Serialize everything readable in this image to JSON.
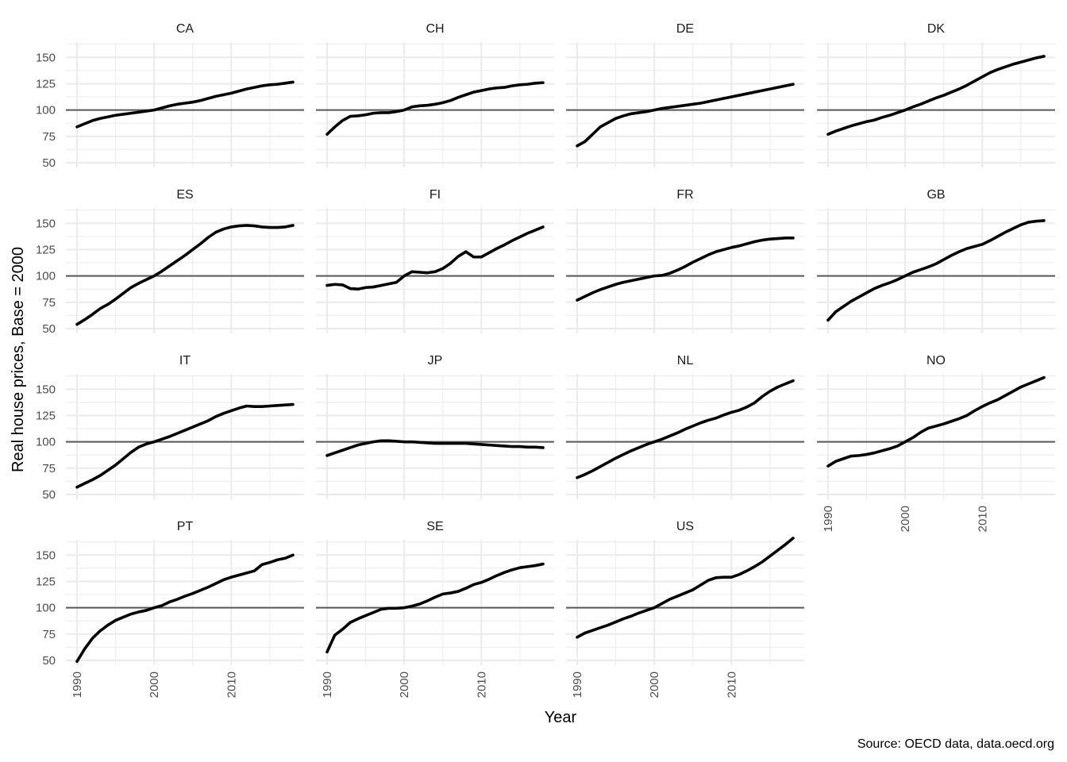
{
  "chart_data": {
    "type": "line",
    "xlabel": "Year",
    "ylabel": "Real house prices, Base = 2000",
    "caption": "Source: OECD data, data.oecd.org",
    "xlim": [
      1990,
      2018
    ],
    "ylim": [
      50,
      160
    ],
    "x_ticks": [
      1990,
      2000,
      2010
    ],
    "y_ticks": [
      50,
      75,
      100,
      125,
      150
    ],
    "reference_line": 100,
    "grid": true,
    "layout": "facet grid, 4 columns",
    "line_color": "#000000",
    "reference_line_color": "#595959",
    "grid_color": "#ebebeb",
    "x": [
      1990,
      1991,
      1992,
      1993,
      1994,
      1995,
      1996,
      1997,
      1998,
      1999,
      2000,
      2001,
      2002,
      2003,
      2004,
      2005,
      2006,
      2007,
      2008,
      2009,
      2010,
      2011,
      2012,
      2013,
      2014,
      2015,
      2016,
      2017,
      2018
    ],
    "series": [
      {
        "name": "CA",
        "values": [
          84,
          87,
          90,
          92,
          93.5,
          95,
          96,
          97,
          98,
          99,
          100,
          102,
          104,
          105.5,
          106.5,
          107.5,
          109,
          111,
          113,
          114.5,
          116,
          118,
          120,
          121.5,
          123,
          124,
          124.5,
          125.5,
          126.5
        ]
      },
      {
        "name": "CH",
        "values": [
          77,
          84,
          90,
          94,
          94.5,
          95.5,
          97,
          97.5,
          97.5,
          98.5,
          100,
          103,
          104,
          104.5,
          105.5,
          107,
          109,
          112,
          114.5,
          117,
          118.5,
          120,
          121,
          121.5,
          123,
          124,
          124.5,
          125.5,
          126
        ]
      },
      {
        "name": "DE",
        "values": [
          66,
          70,
          77,
          84,
          88,
          92,
          94.5,
          96.5,
          97.5,
          98.5,
          100,
          101.5,
          102.5,
          103.5,
          104.5,
          105.5,
          106.5,
          108,
          109.5,
          111,
          112.5,
          114,
          115.5,
          117,
          118.5,
          120,
          121.5,
          123,
          124.5
        ]
      },
      {
        "name": "DK",
        "values": [
          77,
          80,
          82.5,
          85,
          87,
          89,
          90.5,
          93,
          95,
          97.5,
          100,
          103,
          105.5,
          108.5,
          111.5,
          114,
          117,
          120,
          123.5,
          127.5,
          131.5,
          135.5,
          138.5,
          141,
          143.5,
          145.5,
          147.5,
          149.5,
          151
        ]
      },
      {
        "name": "ES",
        "values": [
          54,
          58.5,
          63.5,
          69,
          73,
          78,
          83.5,
          89,
          93,
          96.5,
          100,
          104.5,
          109.5,
          114.5,
          119.5,
          125,
          130.5,
          136.5,
          141.5,
          144.5,
          146.5,
          147.5,
          148,
          147.5,
          146.5,
          146,
          146,
          146.5,
          148
        ]
      },
      {
        "name": "FI",
        "values": [
          91,
          92,
          91.5,
          88,
          87.5,
          89,
          89.5,
          91,
          92.5,
          94,
          100,
          104,
          103.5,
          103,
          104,
          107,
          112,
          118.5,
          123,
          118,
          118,
          122,
          126,
          129.5,
          133.5,
          137,
          140.5,
          143.5,
          146.5
        ]
      },
      {
        "name": "FR",
        "values": [
          77,
          80.5,
          84,
          87,
          89.5,
          92,
          94,
          95.5,
          97,
          98.5,
          100,
          100.5,
          102.5,
          105.5,
          109,
          113,
          116.5,
          120,
          123,
          125,
          127,
          128.5,
          130.5,
          132.5,
          134,
          135,
          135.5,
          136,
          136
        ]
      },
      {
        "name": "GB",
        "values": [
          58,
          66,
          71,
          76,
          80,
          84,
          88,
          91,
          93.5,
          96.5,
          100,
          103.5,
          106,
          108.5,
          111.5,
          115.5,
          119.5,
          123,
          126,
          128,
          130,
          133.5,
          137.5,
          141.5,
          145,
          148.5,
          151,
          152,
          152.5
        ]
      },
      {
        "name": "IT",
        "values": [
          57,
          60.5,
          64,
          68,
          73,
          78,
          84,
          90,
          95,
          98,
          100,
          102.5,
          105,
          108,
          111,
          114,
          117,
          120,
          124,
          127,
          129.5,
          132,
          134,
          133.5,
          133.5,
          134,
          134.5,
          135,
          135.5
        ]
      },
      {
        "name": "JP",
        "values": [
          87,
          89.5,
          92,
          94.5,
          97,
          98.5,
          100,
          101,
          101,
          100.5,
          100,
          100,
          99.5,
          99,
          98.5,
          98.5,
          98.5,
          98.5,
          98.5,
          98,
          97.5,
          97,
          96.5,
          96,
          95.5,
          95.5,
          95,
          95,
          94.5
        ]
      },
      {
        "name": "NL",
        "values": [
          66,
          69,
          72.5,
          76.5,
          80.5,
          84.5,
          88,
          91.5,
          94.5,
          97.5,
          100,
          102.5,
          105.5,
          108.5,
          112,
          115,
          118,
          120.5,
          122.5,
          125.5,
          128,
          130,
          133,
          137,
          143,
          148,
          152,
          155,
          158
        ]
      },
      {
        "name": "NO",
        "values": [
          77,
          81.5,
          84,
          86.5,
          87,
          88,
          89.5,
          91.5,
          93.5,
          96,
          100,
          104,
          109,
          113,
          115,
          117,
          119.5,
          122,
          125,
          129.5,
          133.5,
          137,
          140,
          144,
          148,
          152,
          155,
          158,
          161
        ]
      },
      {
        "name": "PT",
        "values": [
          49,
          61,
          71,
          78,
          83.5,
          88,
          91,
          94,
          96,
          97.5,
          100,
          102,
          105.5,
          108,
          111,
          113.5,
          116.5,
          119.5,
          123,
          126.5,
          129,
          131,
          133,
          135,
          141,
          143,
          145.5,
          147,
          150
        ]
      },
      {
        "name": "SE",
        "values": [
          58,
          74,
          79.5,
          86,
          89.5,
          92.5,
          95.5,
          98.5,
          99.5,
          99.5,
          100,
          101.5,
          103.5,
          106.5,
          110,
          113,
          114,
          115.5,
          118.5,
          122,
          124,
          127,
          130.5,
          133.5,
          136,
          138,
          139,
          140,
          141.5
        ]
      },
      {
        "name": "US",
        "values": [
          72,
          76,
          78.5,
          81,
          83.5,
          86.5,
          89.5,
          92,
          95,
          97.5,
          100,
          104,
          108,
          111,
          114,
          117,
          121.5,
          126,
          128.5,
          129,
          129,
          131.5,
          135,
          139,
          143.5,
          149,
          154.5,
          160,
          166
        ]
      }
    ]
  }
}
